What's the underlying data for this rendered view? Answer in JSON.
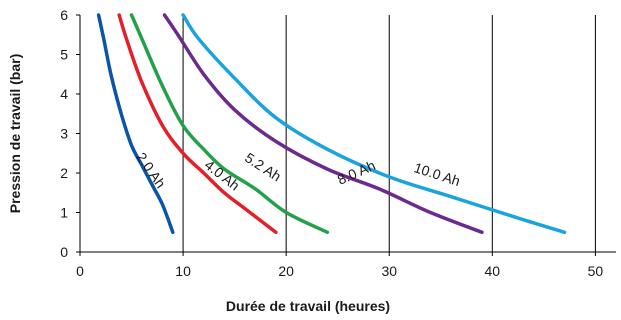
{
  "chart_data": {
    "type": "line",
    "title": "",
    "xlabel": "Durée de travail (heures)",
    "ylabel": "Pression de travail (bar)",
    "xlim": [
      0,
      52
    ],
    "ylim": [
      0,
      6
    ],
    "xticks": [
      "0",
      "10",
      "20",
      "30",
      "40",
      "50"
    ],
    "yticks": [
      "0",
      "1",
      "2",
      "3",
      "4",
      "5",
      "6"
    ],
    "grid": "vertical",
    "series": [
      {
        "name": "2.0 Ah",
        "color": "#0a55a8",
        "points": [
          [
            1.8,
            6.0
          ],
          [
            2.3,
            5.4
          ],
          [
            3.0,
            4.5
          ],
          [
            4.0,
            3.5
          ],
          [
            5.0,
            2.7
          ],
          [
            6.0,
            2.2
          ],
          [
            7.0,
            1.7
          ],
          [
            8.0,
            1.2
          ],
          [
            9.0,
            0.5
          ]
        ]
      },
      {
        "name": "4.0 Ah",
        "color": "#e3202a",
        "points": [
          [
            3.8,
            6.0
          ],
          [
            4.5,
            5.4
          ],
          [
            6.0,
            4.3
          ],
          [
            8.0,
            3.2
          ],
          [
            10.0,
            2.5
          ],
          [
            12.0,
            2.0
          ],
          [
            14.0,
            1.5
          ],
          [
            16.0,
            1.1
          ],
          [
            19.0,
            0.5
          ]
        ]
      },
      {
        "name": "5.2 Ah",
        "color": "#22a14a",
        "points": [
          [
            5.0,
            6.0
          ],
          [
            6.0,
            5.4
          ],
          [
            8.0,
            4.2
          ],
          [
            10.0,
            3.2
          ],
          [
            12.0,
            2.6
          ],
          [
            14.0,
            2.1
          ],
          [
            17.0,
            1.6
          ],
          [
            20.0,
            1.0
          ],
          [
            24.0,
            0.5
          ]
        ]
      },
      {
        "name": "8.0 Ah",
        "color": "#6b2a8c",
        "points": [
          [
            8.2,
            6.0
          ],
          [
            9.5,
            5.5
          ],
          [
            12.0,
            4.5
          ],
          [
            15.0,
            3.6
          ],
          [
            19.0,
            2.8
          ],
          [
            24.0,
            2.1
          ],
          [
            29.0,
            1.6
          ],
          [
            34.0,
            1.0
          ],
          [
            39.0,
            0.5
          ]
        ]
      },
      {
        "name": "10.0 Ah",
        "color": "#1aa3dc",
        "points": [
          [
            10.0,
            6.0
          ],
          [
            11.5,
            5.4
          ],
          [
            15.0,
            4.4
          ],
          [
            19.0,
            3.4
          ],
          [
            24.0,
            2.6
          ],
          [
            30.0,
            1.9
          ],
          [
            36.0,
            1.4
          ],
          [
            42.0,
            0.9
          ],
          [
            47.0,
            0.5
          ]
        ]
      }
    ],
    "annotations": [
      {
        "text": "2.0 Ah",
        "x": 6.5,
        "y": 2.0,
        "angle": 55
      },
      {
        "text": "4.0 Ah",
        "x": 13.5,
        "y": 1.85,
        "angle": 38
      },
      {
        "text": "5.2 Ah",
        "x": 17.5,
        "y": 2.05,
        "angle": 33
      },
      {
        "text": "8.0 Ah",
        "x": 27.0,
        "y": 1.9,
        "angle": -24
      },
      {
        "text": "10.0 Ah",
        "x": 34.5,
        "y": 1.85,
        "angle": 18
      }
    ]
  }
}
